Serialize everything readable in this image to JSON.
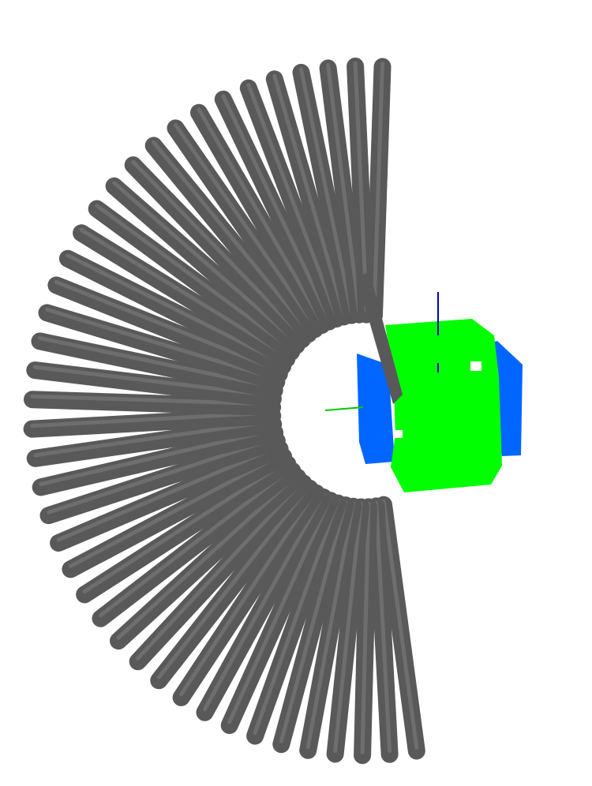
{
  "viewport": {
    "background": "#ffffff"
  },
  "scene": {
    "rod_color": "#595959",
    "rod_highlight": "#6e6e6e",
    "rod_shadow": "#3f3f3f",
    "cube_face_color": "#00ff00",
    "cube_side_color": "#0066ff",
    "axis_x_color": "#00cc00",
    "axis_z_color": "#0000cc",
    "rod_count": 41
  }
}
